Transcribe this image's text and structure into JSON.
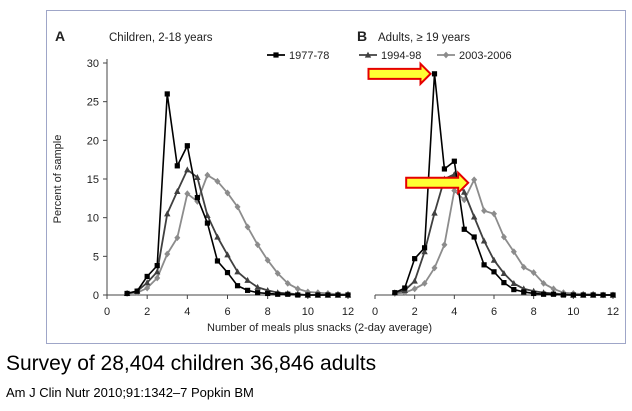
{
  "caption": "Survey of 28,404 children 36,846 adults",
  "citation": "Am J Clin Nutr 2010;91:1342–7 Popkin BM",
  "chart_data": [
    {
      "type": "line",
      "panel_letter": "A",
      "panel_title": "Children, 2-18 years",
      "ylabel": "Percent of sample",
      "xlabel": "",
      "xlim": [
        0,
        12
      ],
      "ylim": [
        0,
        30
      ],
      "xticks": [
        0,
        2,
        4,
        6,
        8,
        10,
        12
      ],
      "yticks": [
        0,
        5,
        10,
        15,
        20,
        25,
        30
      ],
      "series": [
        {
          "name": "1977-78",
          "color": "#000000",
          "marker": "square",
          "x": [
            1,
            1.5,
            2,
            2.5,
            3,
            3.5,
            4,
            4.5,
            5,
            5.5,
            6,
            6.5,
            7,
            7.5,
            8,
            8.5,
            9,
            9.5,
            10,
            10.5,
            11,
            11.5,
            12
          ],
          "y": [
            0.2,
            0.5,
            2.4,
            3.8,
            26.0,
            16.7,
            19.3,
            12.6,
            9.3,
            4.4,
            2.9,
            1.2,
            0.6,
            0.3,
            0.2,
            0.1,
            0.1,
            0,
            0,
            0,
            0,
            0,
            0
          ]
        },
        {
          "name": "1994-98",
          "color": "#404040",
          "marker": "triangle",
          "x": [
            1,
            1.5,
            2,
            2.5,
            3,
            3.5,
            4,
            4.5,
            5,
            5.5,
            6,
            6.5,
            7,
            7.5,
            8,
            8.5,
            9,
            9.5,
            10,
            10.5,
            11,
            11.5,
            12
          ],
          "y": [
            0.2,
            0.5,
            1.6,
            3.0,
            10.5,
            13.4,
            16.2,
            15.2,
            10.3,
            7.5,
            5.2,
            3.0,
            1.9,
            1.0,
            0.6,
            0.3,
            0.2,
            0.1,
            0,
            0,
            0,
            0,
            0
          ]
        },
        {
          "name": "2003-2006",
          "color": "#8c8c8c",
          "marker": "diamond",
          "x": [
            1,
            1.5,
            2,
            2.5,
            3,
            3.5,
            4,
            4.5,
            5,
            5.5,
            6,
            6.5,
            7,
            7.5,
            8,
            8.5,
            9,
            9.5,
            10,
            10.5,
            11,
            11.5,
            12
          ],
          "y": [
            0.2,
            0.3,
            0.9,
            2.2,
            5.3,
            7.4,
            13.1,
            12.1,
            15.5,
            14.7,
            13.2,
            11.4,
            8.8,
            6.5,
            4.5,
            2.8,
            1.5,
            0.8,
            0.4,
            0.3,
            0.2,
            0.1,
            0.1
          ]
        }
      ]
    },
    {
      "type": "line",
      "panel_letter": "B",
      "panel_title": "Adults, ≥ 19 years",
      "ylabel": "",
      "xlabel": "Number of meals plus snacks (2-day average)",
      "xlim": [
        0,
        12
      ],
      "ylim": [
        0,
        30
      ],
      "xticks": [
        0,
        2,
        4,
        6,
        8,
        10,
        12
      ],
      "yticks": [],
      "series": [
        {
          "name": "1977-78",
          "color": "#000000",
          "marker": "square",
          "x": [
            1,
            1.5,
            2,
            2.5,
            3,
            3.5,
            4,
            4.5,
            5,
            5.5,
            6,
            6.5,
            7,
            7.5,
            8,
            8.5,
            9,
            9.5,
            10,
            10.5,
            11,
            11.5,
            12
          ],
          "y": [
            0.3,
            0.9,
            4.7,
            6.1,
            28.6,
            16.3,
            17.3,
            8.5,
            7.5,
            3.9,
            3.0,
            1.6,
            0.7,
            0.4,
            0.2,
            0.1,
            0.1,
            0,
            0,
            0,
            0,
            0,
            0
          ]
        },
        {
          "name": "1994-98",
          "color": "#404040",
          "marker": "triangle",
          "x": [
            1,
            1.5,
            2,
            2.5,
            3,
            3.5,
            4,
            4.5,
            5,
            5.5,
            6,
            6.5,
            7,
            7.5,
            8,
            8.5,
            9,
            9.5,
            10,
            10.5,
            11,
            11.5,
            12
          ],
          "y": [
            0.3,
            0.6,
            1.8,
            5.6,
            10.6,
            15.0,
            15.6,
            13.3,
            10.1,
            7.0,
            4.5,
            2.8,
            1.5,
            0.8,
            0.5,
            0.3,
            0.2,
            0.1,
            0,
            0,
            0,
            0,
            0
          ]
        },
        {
          "name": "2003-2006",
          "color": "#8c8c8c",
          "marker": "diamond",
          "x": [
            1,
            1.5,
            2,
            2.5,
            3,
            3.5,
            4,
            4.5,
            5,
            5.5,
            6,
            6.5,
            7,
            7.5,
            8,
            8.5,
            9,
            9.5,
            10,
            10.5,
            11,
            11.5,
            12
          ],
          "y": [
            0.2,
            0.3,
            0.8,
            1.5,
            3.5,
            6.5,
            13.5,
            12.3,
            14.9,
            10.9,
            10.5,
            7.5,
            5.6,
            3.6,
            2.9,
            1.5,
            0.8,
            0.3,
            0.2,
            0.1,
            0.1,
            0,
            0
          ]
        }
      ]
    }
  ],
  "annotations": [
    {
      "type": "arrow",
      "panel": 1,
      "points_to_x": 3,
      "points_to_y": 28.6,
      "fill": "#ffff33",
      "stroke": "#e60000"
    },
    {
      "type": "arrow",
      "panel": 1,
      "points_to_x": 4.9,
      "points_to_y": 14.9,
      "fill": "#ffff33",
      "stroke": "#e60000"
    }
  ]
}
